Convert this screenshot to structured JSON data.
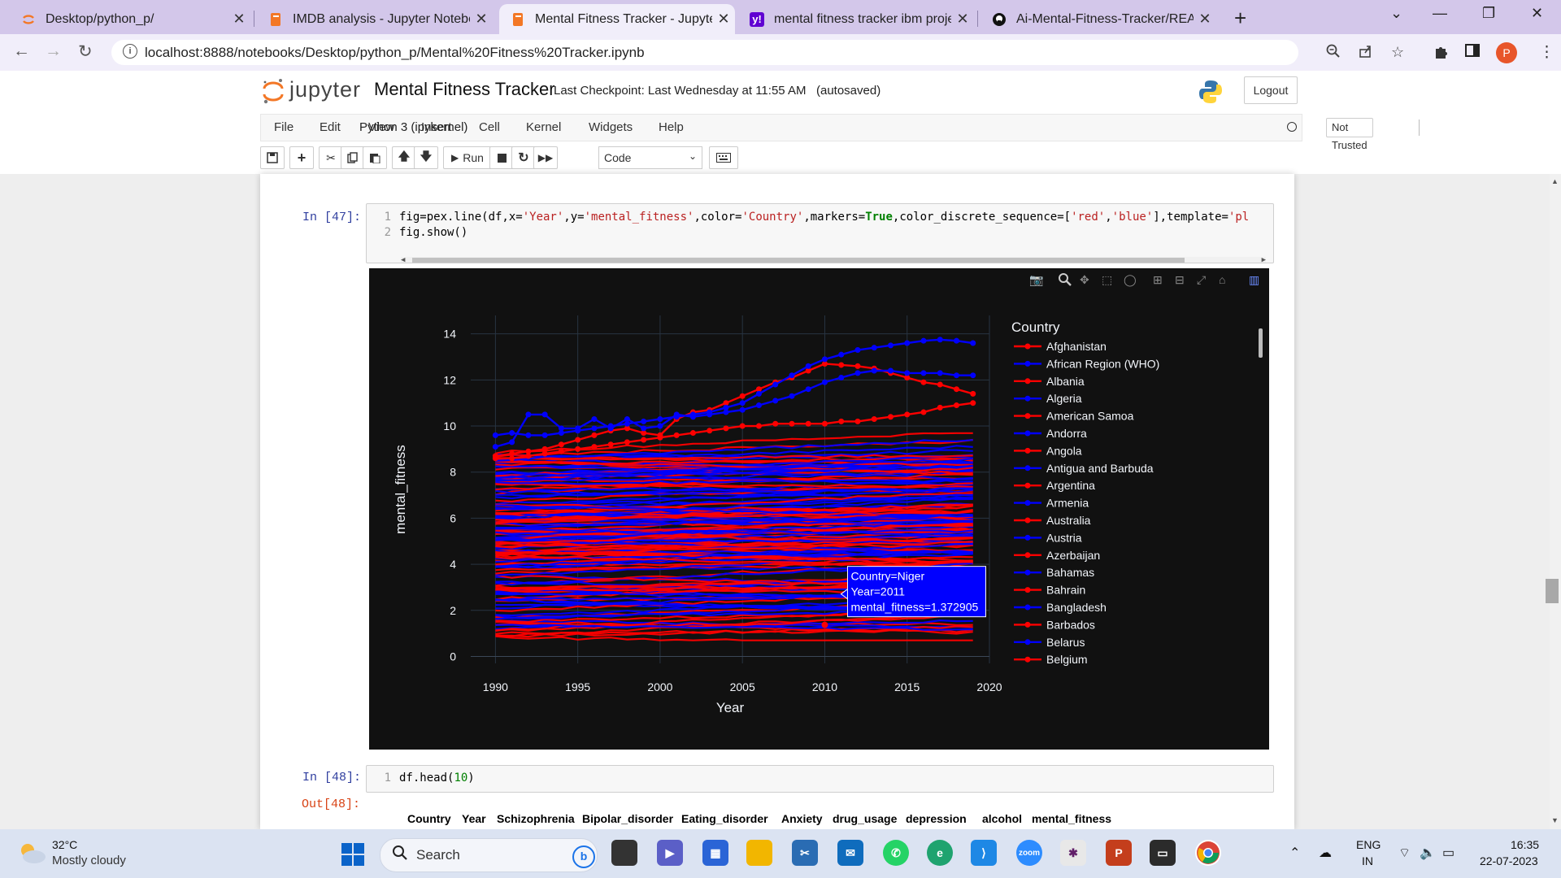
{
  "browser": {
    "tabs": [
      {
        "title": "Desktop/python_p/",
        "favicon": "jupyter-icon",
        "color": "#f37726"
      },
      {
        "title": "IMDB analysis - Jupyter Noteboo",
        "favicon": "notebook-icon",
        "color": "#f37726"
      },
      {
        "title": "Mental Fitness Tracker - Jupyter N",
        "favicon": "notebook-icon",
        "color": "#f37726"
      },
      {
        "title": "mental fitness tracker ibm projec",
        "favicon": "yahoo-icon",
        "color": "#6001d2"
      },
      {
        "title": "Ai-Mental-Fitness-Tracker/READM",
        "favicon": "github-icon",
        "color": "#111111"
      }
    ],
    "url": "localhost:8888/notebooks/Desktop/python_p/Mental%20Fitness%20Tracker.ipynb",
    "profile_initial": "P"
  },
  "jupyter": {
    "logo_text": "jupyter",
    "notebook_name": "Mental Fitness Tracker",
    "checkpoint": "Last Checkpoint: Last Wednesday at 11:55 AM",
    "autosave": "(autosaved)",
    "logout_label": "Logout",
    "menu": [
      "File",
      "Edit",
      "View",
      "Insert",
      "Cell",
      "Kernel",
      "Widgets",
      "Help"
    ],
    "trust_label": "Not Trusted",
    "kernel_label": "Python 3 (ipykernel)",
    "run_label": "Run",
    "cell_type": "Code"
  },
  "cells": {
    "c47": {
      "prompt": "In [47]:",
      "line1_num": "1",
      "line2_num": "2",
      "line1_a": "fig=pex.line(df,x=",
      "line1_s1": "'Year'",
      "line1_b": ",y=",
      "line1_s2": "'mental_fitness'",
      "line1_c": ",color=",
      "line1_s3": "'Country'",
      "line1_d": ",markers=",
      "line1_kw": "True",
      "line1_e": ",color_discrete_sequence=[",
      "line1_s4": "'red'",
      "line1_f": ",",
      "line1_s5": "'blue'",
      "line1_g": "],template=",
      "line1_s6": "'pl",
      "line2": "fig.show()"
    },
    "c48": {
      "prompt": "In [48]:",
      "out_prompt": "Out[48]:",
      "line1_num": "1",
      "line1_a": "df.head(",
      "line1_n": "10",
      "line1_b": ")",
      "columns": [
        "Country",
        "Year",
        "Schizophrenia",
        "Bipolar_disorder",
        "Eating_disorder",
        "Anxiety",
        "drug_usage",
        "depression",
        "alcohol",
        "mental_fitness"
      ]
    }
  },
  "chart_data": {
    "type": "line",
    "xlabel": "Year",
    "ylabel": "mental_fitness",
    "x_ticks": [
      1990,
      1995,
      2000,
      2005,
      2010,
      2015,
      2020
    ],
    "y_ticks": [
      0,
      2,
      4,
      6,
      8,
      10,
      12,
      14
    ],
    "xlim": [
      1988.5,
      2020
    ],
    "ylim": [
      -0.3,
      14.8
    ],
    "colors": [
      "#ff0000",
      "#0000ff"
    ],
    "legend_title": "Country",
    "legend": [
      "Afghanistan",
      "African Region (WHO)",
      "Albania",
      "Algeria",
      "American Samoa",
      "Andorra",
      "Angola",
      "Antigua and Barbuda",
      "Argentina",
      "Armenia",
      "Australia",
      "Austria",
      "Azerbaijan",
      "Bahamas",
      "Bahrain",
      "Bangladesh",
      "Barbados",
      "Belarus",
      "Belgium"
    ],
    "legend_placement": "right",
    "x": [
      1990,
      1991,
      1992,
      1993,
      1994,
      1995,
      1996,
      1997,
      1998,
      1999,
      2000,
      2001,
      2002,
      2003,
      2004,
      2005,
      2006,
      2007,
      2008,
      2009,
      2010,
      2011,
      2012,
      2013,
      2014,
      2015,
      2016,
      2017,
      2018,
      2019
    ],
    "highlight_series": [
      {
        "name": "red-top",
        "color": "#ff0000",
        "values": [
          8.7,
          8.8,
          8.9,
          9.0,
          9.2,
          9.4,
          9.6,
          9.8,
          9.9,
          9.7,
          9.6,
          10.3,
          10.6,
          10.7,
          11.0,
          11.3,
          11.6,
          11.9,
          12.1,
          12.4,
          12.7,
          12.65,
          12.6,
          12.5,
          12.3,
          12.1,
          11.9,
          11.8,
          11.6,
          11.4
        ]
      },
      {
        "name": "blue-top",
        "color": "#0000ff",
        "values": [
          9.6,
          9.7,
          9.6,
          9.6,
          9.7,
          9.8,
          9.9,
          10.0,
          10.1,
          10.2,
          10.3,
          10.4,
          10.5,
          10.6,
          10.8,
          11.0,
          11.4,
          11.8,
          12.2,
          12.6,
          12.9,
          13.1,
          13.3,
          13.4,
          13.5,
          13.6,
          13.7,
          13.75,
          13.7,
          13.6
        ]
      },
      {
        "name": "blue-second",
        "color": "#0000ff",
        "values": [
          9.1,
          9.3,
          10.5,
          10.5,
          9.9,
          9.9,
          10.3,
          9.9,
          10.3,
          9.9,
          10.0,
          10.5,
          10.4,
          10.5,
          10.6,
          10.7,
          10.9,
          11.1,
          11.3,
          11.6,
          11.9,
          12.1,
          12.3,
          12.4,
          12.4,
          12.3,
          12.3,
          12.3,
          12.2,
          12.2
        ]
      },
      {
        "name": "red-third",
        "color": "#ff0000",
        "values": [
          8.6,
          8.6,
          8.7,
          8.8,
          8.9,
          9.0,
          9.1,
          9.2,
          9.3,
          9.4,
          9.5,
          9.6,
          9.7,
          9.8,
          9.9,
          10.0,
          10.0,
          10.1,
          10.1,
          10.1,
          10.1,
          10.2,
          10.2,
          10.3,
          10.4,
          10.5,
          10.6,
          10.8,
          10.9,
          11.0
        ]
      }
    ],
    "tooltip": {
      "lines": [
        "Country=Niger",
        "Year=2011",
        "mental_fitness=1.372905"
      ],
      "x": 2010,
      "y": 1.37
    }
  },
  "taskbar": {
    "temp": "32°C",
    "weather": "Mostly cloudy",
    "search": "Search",
    "lang1": "ENG",
    "lang2": "IN",
    "time": "16:35",
    "date": "22-07-2023"
  }
}
